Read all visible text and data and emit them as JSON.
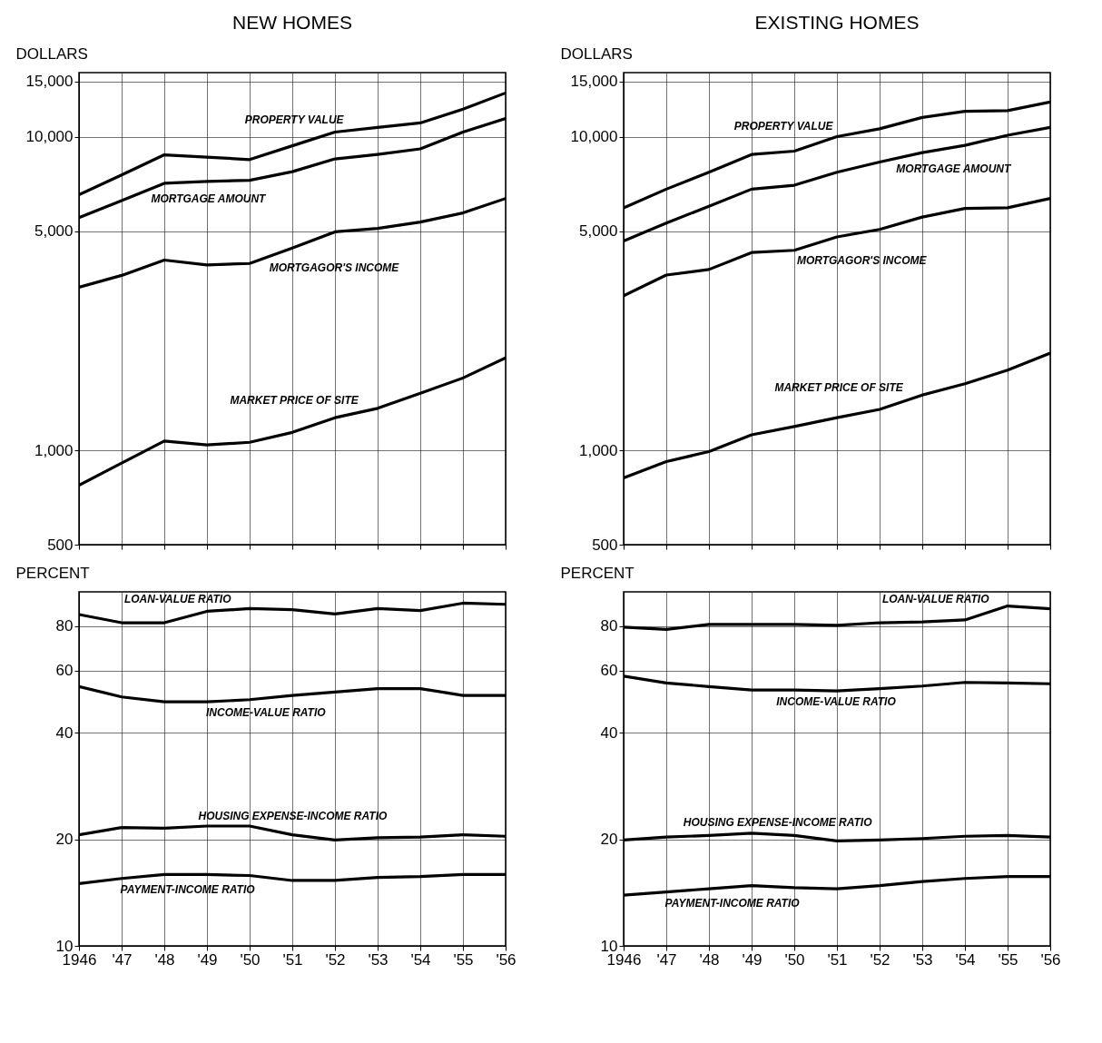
{
  "chart_data": [
    {
      "type": "line",
      "title": "NEW HOMES",
      "ylabel": "DOLLARS",
      "log": true,
      "grid": true,
      "tick_labels": "y",
      "line_style": "solid",
      "x": [
        1946,
        1947,
        1948,
        1949,
        1950,
        1951,
        1952,
        1953,
        1954,
        1955,
        1956
      ],
      "xlim": [
        1946,
        1956
      ],
      "xticks": [
        1946,
        1947,
        1948,
        1949,
        1950,
        1951,
        1952,
        1953,
        1954,
        1955,
        1956
      ],
      "ylim": [
        500,
        16000
      ],
      "yticks": [
        500,
        {
          "value": 1000,
          "label": "1,000"
        },
        {
          "value": 5000,
          "label": "5,000"
        },
        {
          "value": 10000,
          "label": "10,000"
        },
        {
          "value": 15000,
          "label": "15,000"
        }
      ],
      "series": [
        {
          "name": "PROPERTY VALUE",
          "color": "#000000",
          "values": [
            6530,
            7550,
            8750,
            8600,
            8450,
            9350,
            10340,
            10700,
            11060,
            12230,
            13780
          ]
        },
        {
          "name": "MORTGAGE AMOUNT",
          "color": "#000000",
          "values": [
            5520,
            6250,
            7100,
            7200,
            7260,
            7730,
            8490,
            8780,
            9140,
            10340,
            11430
          ]
        },
        {
          "name": "MORTGAGOR'S INCOME",
          "color": "#000000",
          "values": [
            3310,
            3610,
            4040,
            3900,
            3940,
            4410,
            4970,
            5100,
            5340,
            5710,
            6350
          ]
        },
        {
          "name": "MARKET PRICE OF SITE",
          "color": "#000000",
          "values": [
            773,
            910,
            1070,
            1040,
            1060,
            1140,
            1270,
            1360,
            1520,
            1700,
            1970
          ]
        }
      ]
    },
    {
      "type": "line",
      "title": "EXISTING HOMES",
      "ylabel": "DOLLARS",
      "log": true,
      "grid": true,
      "tick_labels": "y",
      "line_style": "solid",
      "x": [
        1946,
        1947,
        1948,
        1949,
        1950,
        1951,
        1952,
        1953,
        1954,
        1955,
        1956
      ],
      "xlim": [
        1946,
        1956
      ],
      "xticks": [
        1946,
        1947,
        1948,
        1949,
        1950,
        1951,
        1952,
        1953,
        1954,
        1955,
        1956
      ],
      "ylim": [
        500,
        16000
      ],
      "yticks": [
        500,
        {
          "value": 1000,
          "label": "1,000"
        },
        {
          "value": 5000,
          "label": "5,000"
        },
        {
          "value": 10000,
          "label": "10,000"
        },
        {
          "value": 15000,
          "label": "15,000"
        }
      ],
      "series": [
        {
          "name": "PROPERTY VALUE",
          "color": "#000000",
          "values": [
            5930,
            6800,
            7700,
            8770,
            8990,
            10000,
            10590,
            11510,
            12040,
            12100,
            12890
          ]
        },
        {
          "name": "MORTGAGE AMOUNT",
          "color": "#000000",
          "values": [
            4650,
            5300,
            6000,
            6800,
            7000,
            7700,
            8300,
            8890,
            9380,
            10100,
            10700
          ]
        },
        {
          "name": "MORTGAGOR'S INCOME",
          "color": "#000000",
          "values": [
            3110,
            3620,
            3770,
            4270,
            4340,
            4790,
            5060,
            5540,
            5900,
            5930,
            6350
          ]
        },
        {
          "name": "MARKET PRICE OF SITE",
          "color": "#000000",
          "values": [
            816,
            920,
            990,
            1120,
            1190,
            1270,
            1350,
            1500,
            1630,
            1800,
            2040
          ]
        }
      ]
    },
    {
      "type": "line",
      "ylabel": "PERCENT",
      "log": true,
      "grid": true,
      "line_style": "solid",
      "x": [
        1946,
        1947,
        1948,
        1949,
        1950,
        1951,
        1952,
        1953,
        1954,
        1955,
        1956
      ],
      "xlim": [
        1946,
        1956
      ],
      "xticks": [
        1946,
        {
          "value": 1947,
          "label": "'47"
        },
        {
          "value": 1948,
          "label": "'48"
        },
        {
          "value": 1949,
          "label": "'49"
        },
        {
          "value": 1950,
          "label": "'50"
        },
        {
          "value": 1951,
          "label": "'51"
        },
        {
          "value": 1952,
          "label": "'52"
        },
        {
          "value": 1953,
          "label": "'53"
        },
        {
          "value": 1954,
          "label": "'54"
        },
        {
          "value": 1955,
          "label": "'55"
        },
        {
          "value": 1956,
          "label": "'56"
        }
      ],
      "ylim": [
        10,
        100
      ],
      "yticks": [
        10,
        20,
        40,
        60,
        80
      ],
      "series": [
        {
          "name": "LOAN-VALUE RATIO",
          "color": "#000000",
          "values": [
            86.3,
            81.8,
            81.8,
            88.1,
            89.7,
            89.1,
            86.6,
            89.7,
            88.5,
            92.9,
            92.2
          ]
        },
        {
          "name": "INCOME-VALUE RATIO",
          "color": "#000000",
          "values": [
            54.0,
            50.5,
            48.9,
            48.9,
            49.6,
            51.0,
            52.1,
            53.3,
            53.3,
            51.0,
            51.0
          ]
        },
        {
          "name": "HOUSING EXPENSE-INCOME RATIO",
          "color": "#000000",
          "values": [
            20.6,
            21.6,
            21.5,
            21.8,
            21.8,
            20.6,
            19.9,
            20.2,
            20.3,
            20.6,
            20.4
          ]
        },
        {
          "name": "PAYMENT-INCOME RATIO",
          "color": "#000000",
          "values": [
            15.0,
            15.5,
            15.9,
            15.9,
            15.8,
            15.3,
            15.3,
            15.6,
            15.7,
            15.9,
            15.9
          ]
        }
      ]
    },
    {
      "type": "line",
      "ylabel": "PERCENT",
      "log": true,
      "grid": true,
      "line_style": "solid",
      "x": [
        1946,
        1947,
        1948,
        1949,
        1950,
        1951,
        1952,
        1953,
        1954,
        1955,
        1956
      ],
      "xlim": [
        1946,
        1956
      ],
      "xticks": [
        1946,
        {
          "value": 1947,
          "label": "'47"
        },
        {
          "value": 1948,
          "label": "'48"
        },
        {
          "value": 1949,
          "label": "'49"
        },
        {
          "value": 1950,
          "label": "'50"
        },
        {
          "value": 1951,
          "label": "'51"
        },
        {
          "value": 1952,
          "label": "'52"
        },
        {
          "value": 1953,
          "label": "'53"
        },
        {
          "value": 1954,
          "label": "'54"
        },
        {
          "value": 1955,
          "label": "'55"
        },
        {
          "value": 1956,
          "label": "'56"
        }
      ],
      "ylim": [
        10,
        100
      ],
      "yticks": [
        10,
        20,
        40,
        60,
        80
      ],
      "series": [
        {
          "name": "LOAN-VALUE RATIO",
          "color": "#000000",
          "values": [
            79.5,
            78.3,
            80.9,
            80.9,
            80.9,
            80.4,
            81.8,
            82.2,
            83.3,
            91.2,
            89.6
          ]
        },
        {
          "name": "INCOME-VALUE RATIO",
          "color": "#000000",
          "values": [
            57.8,
            55.3,
            54.0,
            52.8,
            52.8,
            52.5,
            53.3,
            54.2,
            55.5,
            55.3,
            55.0
          ]
        },
        {
          "name": "HOUSING EXPENSE-INCOME RATIO",
          "color": "#000000",
          "values": [
            19.9,
            20.3,
            20.5,
            20.8,
            20.5,
            19.8,
            19.9,
            20.1,
            20.4,
            20.5,
            20.3
          ]
        },
        {
          "name": "PAYMENT-INCOME RATIO",
          "color": "#000000",
          "values": [
            13.9,
            14.2,
            14.5,
            14.8,
            14.6,
            14.5,
            14.8,
            15.2,
            15.5,
            15.7,
            15.7
          ]
        }
      ]
    }
  ]
}
